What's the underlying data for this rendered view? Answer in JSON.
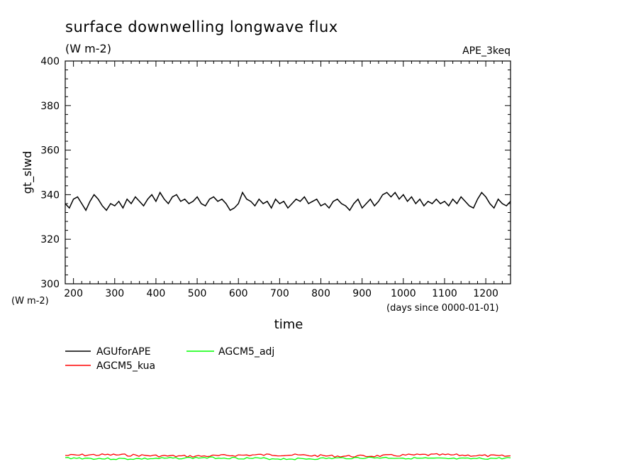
{
  "chart_data": {
    "type": "line",
    "title": "surface downwelling longwave flux",
    "units_label": "(W m-2)",
    "experiment": "APE_3keq",
    "ylabel": "gt_slwd",
    "y_units": "(W m-2)",
    "xlabel": "time",
    "x_units": "(days since 0000-01-01)",
    "xlim": [
      180,
      1260
    ],
    "ylim": [
      300,
      400
    ],
    "x_ticks": [
      200,
      300,
      400,
      500,
      600,
      700,
      800,
      900,
      1000,
      1100,
      1200
    ],
    "y_ticks": [
      300,
      320,
      340,
      360,
      380,
      400
    ],
    "grid": false,
    "legend_position": "below",
    "series": [
      {
        "name": "AGUforAPE",
        "color": "#000000",
        "x": [
          180,
          190,
          200,
          210,
          220,
          230,
          240,
          250,
          260,
          270,
          280,
          290,
          300,
          310,
          320,
          330,
          340,
          350,
          360,
          370,
          380,
          390,
          400,
          410,
          420,
          430,
          440,
          450,
          460,
          470,
          480,
          490,
          500,
          510,
          520,
          530,
          540,
          550,
          560,
          570,
          580,
          590,
          600,
          610,
          620,
          630,
          640,
          650,
          660,
          670,
          680,
          690,
          700,
          710,
          720,
          730,
          740,
          750,
          760,
          770,
          780,
          790,
          800,
          810,
          820,
          830,
          840,
          850,
          860,
          870,
          880,
          890,
          900,
          910,
          920,
          930,
          940,
          950,
          960,
          970,
          980,
          990,
          1000,
          1010,
          1020,
          1030,
          1040,
          1050,
          1060,
          1070,
          1080,
          1090,
          1100,
          1110,
          1120,
          1130,
          1140,
          1150,
          1160,
          1170,
          1180,
          1190,
          1200,
          1210,
          1220,
          1230,
          1240,
          1250,
          1260
        ],
        "values": [
          336,
          334,
          338,
          339,
          336,
          333,
          337,
          340,
          338,
          335,
          333,
          336,
          335,
          337,
          334,
          338,
          336,
          339,
          337,
          335,
          338,
          340,
          337,
          341,
          338,
          336,
          339,
          340,
          337,
          338,
          336,
          337,
          339,
          336,
          335,
          338,
          339,
          337,
          338,
          336,
          333,
          334,
          336,
          341,
          338,
          337,
          335,
          338,
          336,
          337,
          334,
          338,
          336,
          337,
          334,
          336,
          338,
          337,
          339,
          336,
          337,
          338,
          335,
          336,
          334,
          337,
          338,
          336,
          335,
          333,
          336,
          338,
          334,
          336,
          338,
          335,
          337,
          340,
          341,
          339,
          341,
          338,
          340,
          337,
          339,
          336,
          338,
          335,
          337,
          336,
          338,
          336,
          337,
          335,
          338,
          336,
          339,
          337,
          335,
          334,
          338,
          341,
          339,
          336,
          334,
          338,
          336,
          335,
          337
        ]
      },
      {
        "name": "AGCM5_kua",
        "color": "#ff0000",
        "x": [],
        "values": []
      },
      {
        "name": "AGCM5_adj",
        "color": "#00ff00",
        "x": [],
        "values": []
      }
    ]
  }
}
